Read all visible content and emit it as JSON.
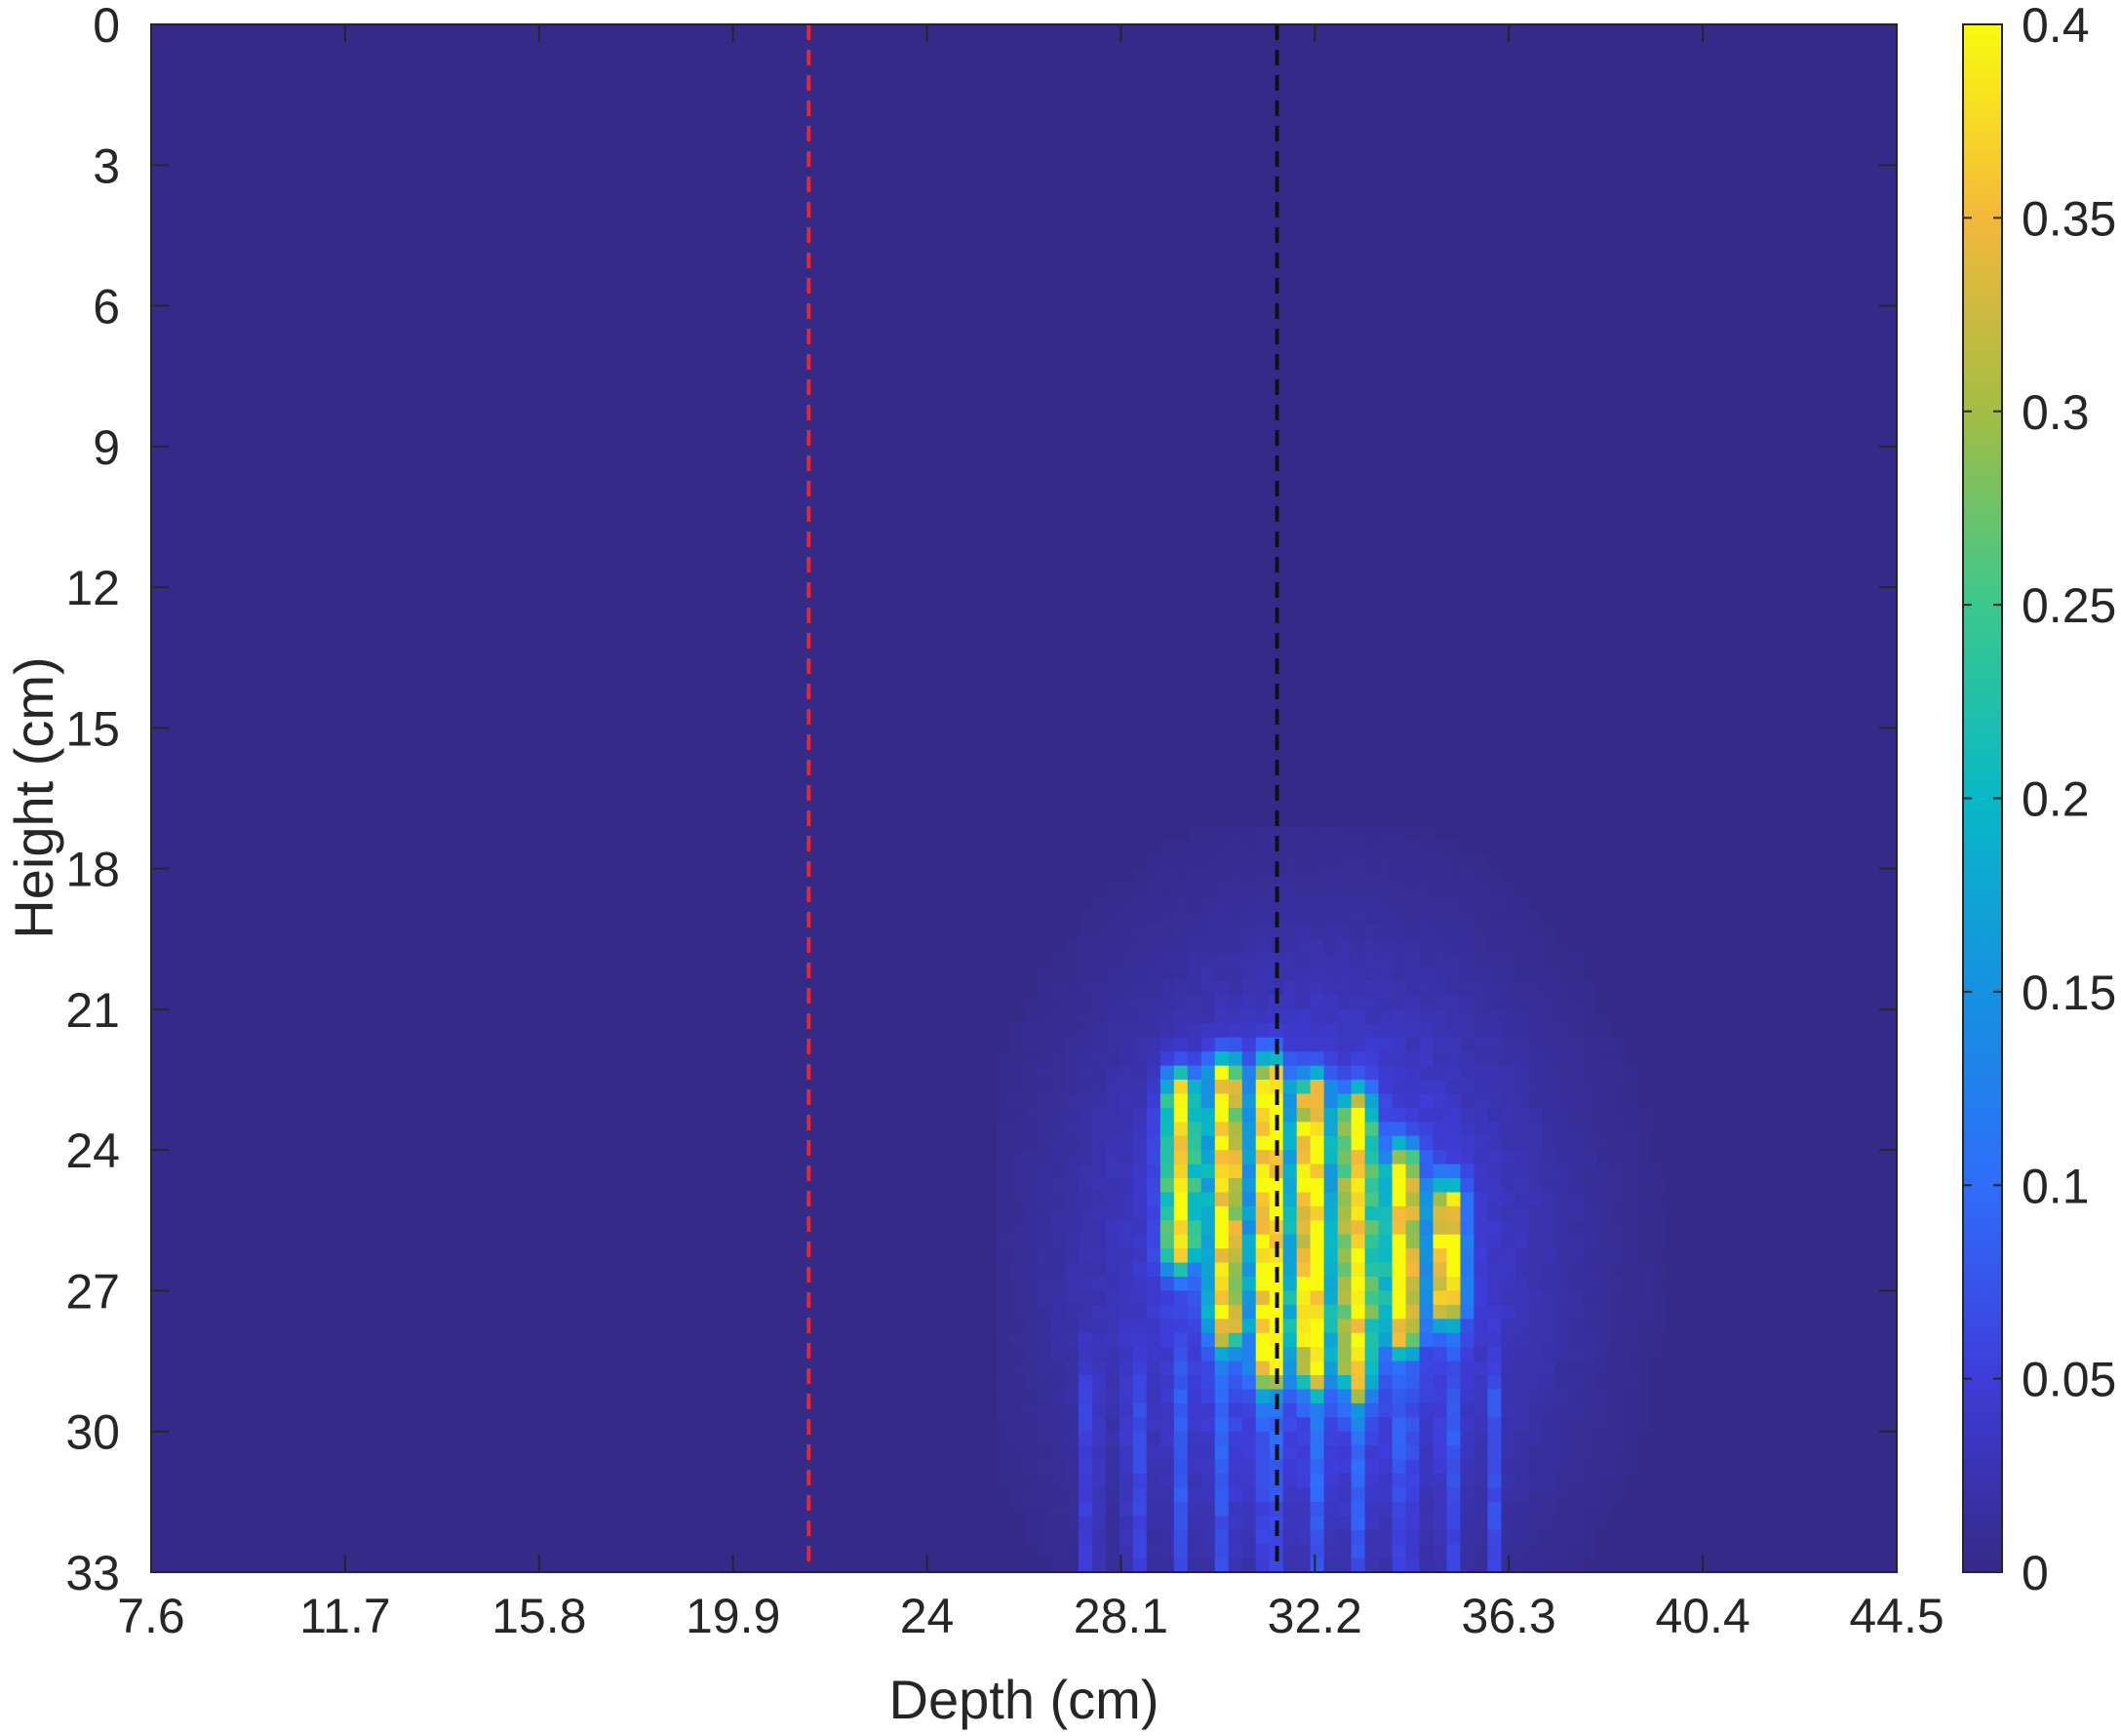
{
  "chart_data": {
    "type": "heatmap",
    "title": "",
    "xlabel": "Depth (cm)",
    "ylabel": "Height (cm)",
    "x_ticks": [
      "7.6",
      "11.7",
      "15.8",
      "19.9",
      "24",
      "28.1",
      "32.2",
      "36.3",
      "40.4",
      "44.5"
    ],
    "y_ticks": [
      "0",
      "3",
      "6",
      "9",
      "12",
      "15",
      "18",
      "21",
      "24",
      "27",
      "30",
      "33"
    ],
    "xlim": [
      7.6,
      44.5
    ],
    "ylim": [
      0,
      33
    ],
    "y_direction": "top-to-bottom",
    "colorbar": {
      "colormap": "parula",
      "clim": [
        0,
        0.4
      ],
      "ticks": [
        "0",
        "0.05",
        "0.1",
        "0.15",
        "0.2",
        "0.25",
        "0.3",
        "0.35",
        "0.4"
      ]
    },
    "background_value": 0.0,
    "reference_lines": [
      {
        "orientation": "vertical",
        "x": 21.5,
        "style": "dashed",
        "color": "#e8262c"
      },
      {
        "orientation": "vertical",
        "x": 31.4,
        "style": "dashed",
        "color": "#111111"
      }
    ],
    "stripes": [
      {
        "x": 29.35,
        "y0": 22.9,
        "y1": 25.9,
        "peak": 0.4
      },
      {
        "x": 30.3,
        "y0": 22.6,
        "y1": 27.5,
        "peak": 0.4
      },
      {
        "x": 31.25,
        "y0": 22.6,
        "y1": 28.4,
        "peak": 0.4
      },
      {
        "x": 32.15,
        "y0": 23.0,
        "y1": 28.4,
        "peak": 0.4
      },
      {
        "x": 33.1,
        "y0": 23.3,
        "y1": 28.6,
        "peak": 0.4
      },
      {
        "x": 34.05,
        "y0": 24.5,
        "y1": 27.6,
        "peak": 0.4
      },
      {
        "x": 35.0,
        "y0": 25.2,
        "y1": 27.1,
        "peak": 0.38
      }
    ],
    "glow": {
      "center": [
        32.2,
        26.5
      ],
      "sigma": [
        3.0,
        4.0
      ],
      "amplitude": 0.085,
      "extent_x": [
        25.5,
        40.5
      ],
      "extent_y": [
        17.0,
        33.0
      ]
    }
  }
}
